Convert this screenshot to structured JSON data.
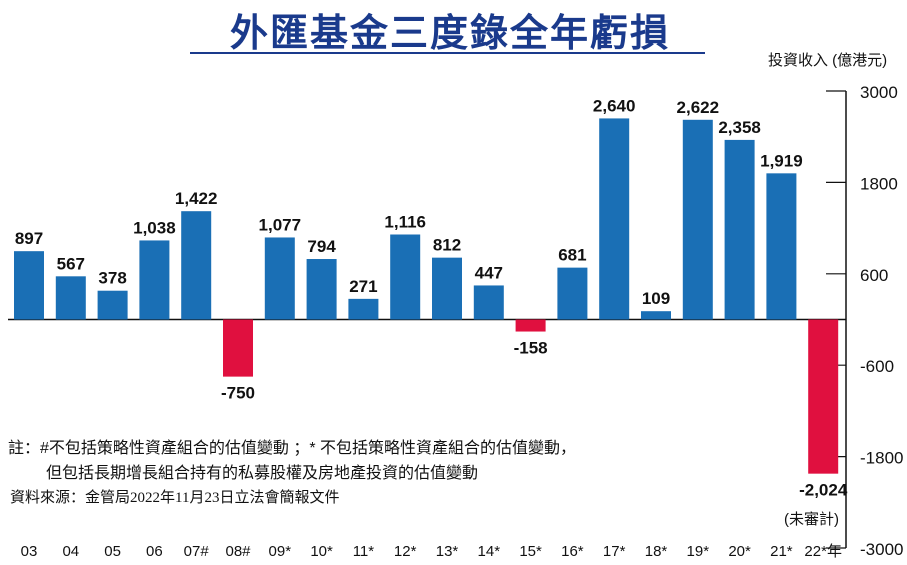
{
  "chart_data": {
    "type": "bar",
    "title": "外匯基金三度錄全年虧損",
    "ylabel": "投資收入 (億港元)",
    "ylim": [
      -3000,
      3000
    ],
    "yticks": [
      3000,
      1800,
      600,
      -600,
      -1800,
      -3000
    ],
    "categories": [
      "03",
      "04",
      "05",
      "06",
      "07#",
      "08#",
      "09*",
      "10*",
      "11*",
      "12*",
      "13*",
      "14*",
      "15*",
      "16*",
      "17*",
      "18*",
      "19*",
      "20*",
      "21*",
      "22*年"
    ],
    "values": [
      897,
      567,
      378,
      1038,
      1422,
      -750,
      1077,
      794,
      271,
      1116,
      812,
      447,
      -158,
      681,
      2640,
      109,
      2622,
      2358,
      1919,
      -2024
    ],
    "labels": [
      "897",
      "567",
      "378",
      "1,038",
      "1,422",
      "-750",
      "1,077",
      "794",
      "271",
      "1,116",
      "812",
      "447",
      "-158",
      "681",
      "2,640",
      "109",
      "2,622",
      "2,358",
      "1,919",
      "-2,024"
    ],
    "colors": {
      "positive": "#1a6fb5",
      "negative": "#e0103f"
    },
    "annotation": "(未審計)",
    "notes": [
      "註：#不包括策略性資產組合的估值變動 ；* 不包括策略性資產組合的估值變動，",
      "但包括長期增長組合持有的私募股權及房地產投資的估值變動"
    ],
    "source": "資料來源：金管局2022年11月23日立法會簡報文件"
  }
}
